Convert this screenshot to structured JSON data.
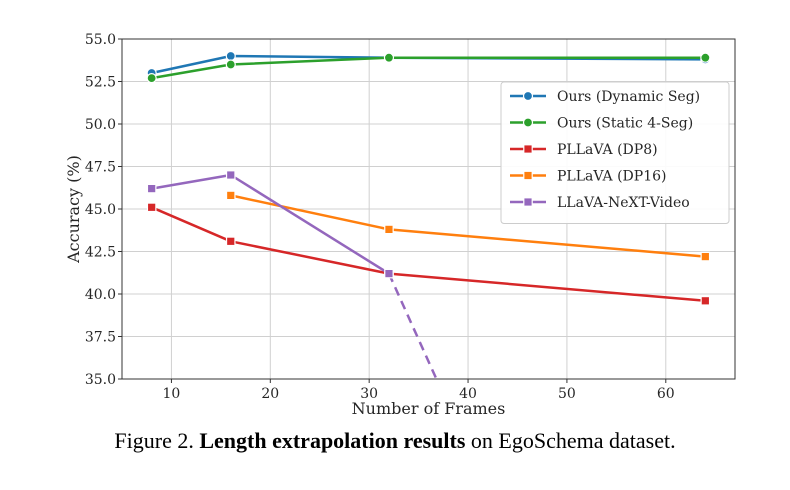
{
  "caption": {
    "prefix": "Figure 2.",
    "bold": "Length extrapolation results",
    "suffix": "on EgoSchema dataset."
  },
  "chart_data": {
    "type": "line",
    "xlabel": "Number of Frames",
    "ylabel": "Accuracy (%)",
    "xlim": [
      5,
      67
    ],
    "ylim": [
      35,
      55
    ],
    "xticks": [
      10,
      20,
      30,
      40,
      50,
      60
    ],
    "yticks": [
      35.0,
      37.5,
      40.0,
      42.5,
      45.0,
      47.5,
      50.0,
      52.5,
      55.0
    ],
    "grid": true,
    "legend_position": "top-right",
    "series": [
      {
        "name": "Ours (Dynamic Seg)",
        "color": "#1f77b4",
        "marker": "circle",
        "dashed_tail": false,
        "x": [
          8,
          16,
          32,
          64
        ],
        "y": [
          53.0,
          54.0,
          53.9,
          53.8
        ]
      },
      {
        "name": "Ours (Static 4-Seg)",
        "color": "#2ca02c",
        "marker": "circle",
        "dashed_tail": false,
        "x": [
          8,
          16,
          32,
          64
        ],
        "y": [
          52.7,
          53.5,
          53.9,
          53.9
        ]
      },
      {
        "name": "PLLaVA (DP8)",
        "color": "#d62728",
        "marker": "square",
        "dashed_tail": false,
        "x": [
          8,
          16,
          32,
          64
        ],
        "y": [
          45.1,
          43.1,
          41.2,
          39.6
        ]
      },
      {
        "name": "PLLaVA (DP16)",
        "color": "#ff7f0e",
        "marker": "square",
        "dashed_tail": false,
        "x": [
          16,
          32,
          64
        ],
        "y": [
          45.8,
          43.8,
          42.2
        ]
      },
      {
        "name": "LLaVA-NeXT-Video",
        "color": "#9467bd",
        "marker": "square",
        "dashed_tail": true,
        "x": [
          8,
          16,
          32
        ],
        "y": [
          46.2,
          47.0,
          41.2
        ],
        "tail_x": [
          32,
          36.8
        ],
        "tail_y": [
          41.2,
          35.0
        ]
      }
    ]
  }
}
